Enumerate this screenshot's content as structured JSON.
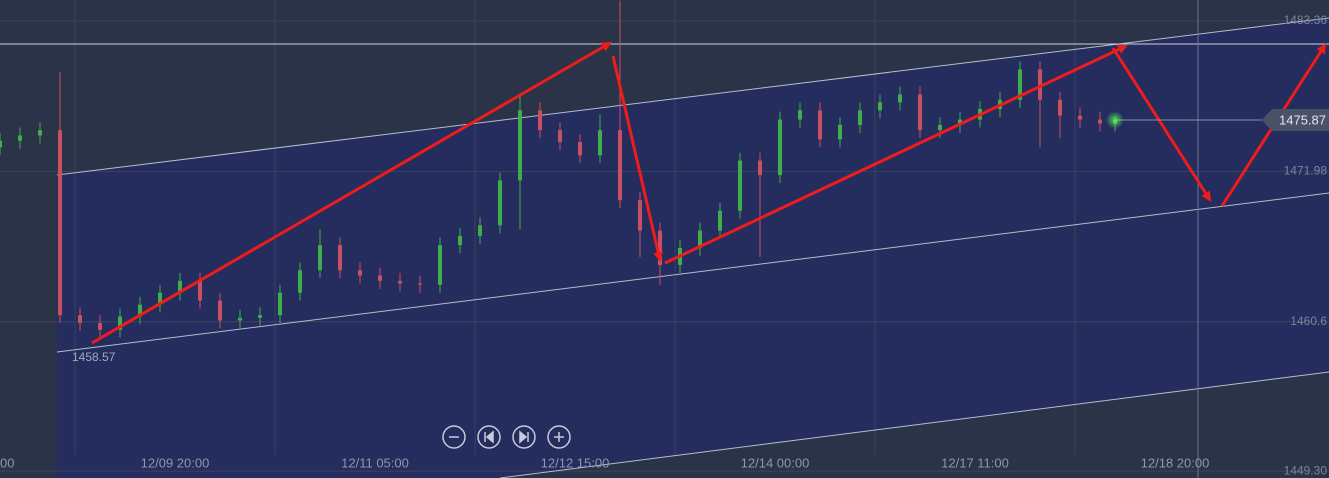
{
  "chart_data": {
    "type": "candlestick",
    "x": [
      0,
      4,
      8,
      12,
      16,
      20,
      24,
      28,
      32,
      36,
      40,
      44,
      48,
      52,
      56,
      60,
      64,
      68,
      72,
      76,
      80,
      84,
      88,
      92,
      96,
      100,
      104,
      108,
      112,
      116,
      120,
      124,
      128,
      132,
      136,
      140,
      144,
      148,
      152,
      156,
      160,
      164,
      168,
      172,
      176,
      180,
      184,
      188,
      192,
      196,
      200,
      204,
      208,
      212,
      216,
      220,
      223
    ],
    "ohlc": [
      [
        1473.8,
        1474.9,
        1473.2,
        1474.3
      ],
      [
        1474.3,
        1475.3,
        1473.7,
        1474.7
      ],
      [
        1474.7,
        1475.7,
        1474.1,
        1475.1
      ],
      [
        1475.1,
        1479.5,
        1460.5,
        1461.1
      ],
      [
        1461.1,
        1461.7,
        1459.9,
        1460.5
      ],
      [
        1460.5,
        1461.1,
        1459.4,
        1460.0
      ],
      [
        1460.0,
        1461.6,
        1459.4,
        1461.0
      ],
      [
        1461.0,
        1462.5,
        1460.4,
        1461.9
      ],
      [
        1461.9,
        1463.4,
        1461.3,
        1462.8
      ],
      [
        1462.8,
        1464.3,
        1462.2,
        1463.7
      ],
      [
        1463.7,
        1464.3,
        1461.6,
        1462.2
      ],
      [
        1462.2,
        1462.8,
        1460.1,
        1460.7
      ],
      [
        1460.7,
        1461.5,
        1460.1,
        1460.9
      ],
      [
        1460.9,
        1461.7,
        1460.3,
        1461.1
      ],
      [
        1461.1,
        1463.4,
        1460.5,
        1462.8
      ],
      [
        1462.8,
        1465.1,
        1462.2,
        1464.5
      ],
      [
        1464.5,
        1467.6,
        1463.9,
        1466.4
      ],
      [
        1466.4,
        1467.0,
        1463.9,
        1464.5
      ],
      [
        1464.5,
        1465.1,
        1463.5,
        1464.1
      ],
      [
        1464.1,
        1464.7,
        1463.1,
        1463.7
      ],
      [
        1463.7,
        1464.3,
        1462.9,
        1463.5
      ],
      [
        1463.5,
        1464.1,
        1462.8,
        1463.4
      ],
      [
        1463.4,
        1467.0,
        1462.8,
        1466.4
      ],
      [
        1466.4,
        1467.7,
        1465.8,
        1467.1
      ],
      [
        1467.1,
        1468.5,
        1466.5,
        1467.9
      ],
      [
        1467.9,
        1471.9,
        1467.3,
        1471.3
      ],
      [
        1471.3,
        1477.9,
        1467.6,
        1476.6
      ],
      [
        1476.6,
        1477.2,
        1474.5,
        1475.1
      ],
      [
        1475.1,
        1475.7,
        1473.6,
        1474.2
      ],
      [
        1474.2,
        1474.8,
        1472.6,
        1473.2
      ],
      [
        1473.2,
        1476.3,
        1472.6,
        1475.1
      ],
      [
        1475.1,
        1484.9,
        1469.2,
        1469.8
      ],
      [
        1469.8,
        1470.4,
        1465.5,
        1467.5
      ],
      [
        1467.5,
        1468.1,
        1463.4,
        1464.9
      ],
      [
        1464.9,
        1466.8,
        1464.3,
        1466.2
      ],
      [
        1466.2,
        1468.1,
        1465.6,
        1467.5
      ],
      [
        1467.5,
        1469.6,
        1466.9,
        1469.0
      ],
      [
        1469.0,
        1473.4,
        1468.4,
        1472.8
      ],
      [
        1472.8,
        1473.4,
        1465.5,
        1471.7
      ],
      [
        1471.7,
        1476.5,
        1471.1,
        1475.9
      ],
      [
        1475.9,
        1477.2,
        1475.3,
        1476.6
      ],
      [
        1476.6,
        1477.2,
        1473.8,
        1474.4
      ],
      [
        1474.4,
        1476.1,
        1473.8,
        1475.5
      ],
      [
        1475.5,
        1477.2,
        1474.9,
        1476.6
      ],
      [
        1476.6,
        1477.8,
        1476.0,
        1477.2
      ],
      [
        1477.2,
        1478.4,
        1476.6,
        1477.8
      ],
      [
        1477.8,
        1478.4,
        1474.5,
        1475.1
      ],
      [
        1475.1,
        1476.1,
        1474.5,
        1475.5
      ],
      [
        1475.5,
        1476.5,
        1474.9,
        1475.9
      ],
      [
        1475.9,
        1477.3,
        1475.3,
        1476.7
      ],
      [
        1476.7,
        1478.0,
        1476.1,
        1477.4
      ],
      [
        1477.4,
        1480.3,
        1476.8,
        1479.7
      ],
      [
        1479.7,
        1480.3,
        1473.8,
        1477.4
      ],
      [
        1477.4,
        1478.0,
        1474.5,
        1476.2
      ],
      [
        1476.2,
        1476.8,
        1475.3,
        1475.9
      ],
      [
        1475.9,
        1476.5,
        1475.0,
        1475.6
      ],
      [
        1475.6,
        1476.1,
        1475.0,
        1475.87
      ]
    ],
    "up_color": "#3fae4a",
    "down_color": "#c94f62",
    "xlim": [
      0,
      265.8
    ],
    "xticks": [
      {
        "value": 35,
        "label": "12/09 20:00"
      },
      {
        "value": 75,
        "label": "12/11 05:00"
      },
      {
        "value": 115,
        "label": "12/12 15:00"
      },
      {
        "value": 155,
        "label": "12/14 00:00"
      },
      {
        "value": 195,
        "label": "12/17 11:00"
      },
      {
        "value": 235,
        "label": "12/18 20:00"
      }
    ],
    "ylim": [
      1448.78,
      1484.95
    ],
    "yticks": [
      1483.36,
      1471.98,
      1460.6,
      {
        "value": 1449.3,
        "label": "1449.30"
      }
    ],
    "grid": true,
    "last_price": 1475.87,
    "low_annotation": 1458.57,
    "left_edge_label": "00"
  }
}
